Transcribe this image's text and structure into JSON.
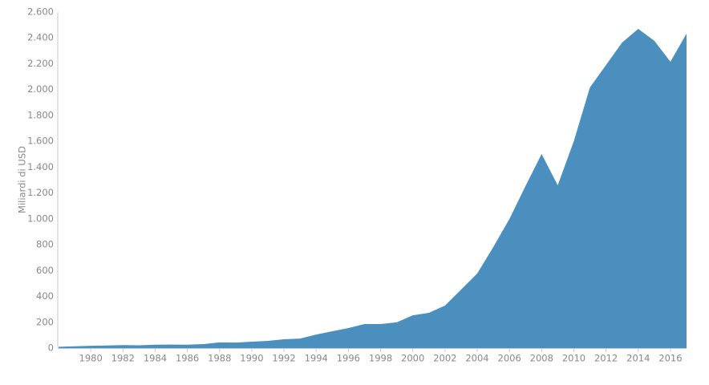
{
  "chart_data": {
    "type": "area",
    "y_label": "Miliardi di USD",
    "color": "#4a8fbd",
    "x": [
      1978,
      1979,
      1980,
      1981,
      1982,
      1983,
      1984,
      1985,
      1986,
      1987,
      1988,
      1989,
      1990,
      1991,
      1992,
      1993,
      1994,
      1995,
      1996,
      1997,
      1998,
      1999,
      2000,
      2001,
      2002,
      2003,
      2004,
      2005,
      2006,
      2007,
      2008,
      2009,
      2010,
      2011,
      2012,
      2013,
      2014,
      2015,
      2016,
      2017
    ],
    "values": [
      10,
      14,
      18,
      20,
      23,
      22,
      26,
      27,
      26,
      31,
      44,
      43,
      50,
      56,
      68,
      74,
      105,
      130,
      155,
      186,
      186,
      199,
      254,
      273,
      329,
      453,
      577,
      782,
      999,
      1254,
      1502,
      1260,
      1601,
      2017,
      2190,
      2364,
      2470,
      2377,
      2215,
      2433
    ],
    "xlim": [
      1978,
      2017
    ],
    "xticks": [
      1980,
      1982,
      1984,
      1986,
      1988,
      1990,
      1992,
      1994,
      1996,
      1998,
      2000,
      2002,
      2004,
      2006,
      2008,
      2010,
      2012,
      2014,
      2016
    ],
    "ylim": [
      0,
      2600
    ],
    "yticks": [
      0,
      200,
      400,
      600,
      800,
      {
        "value": 1000,
        "label": "1.000"
      },
      {
        "value": 1200,
        "label": "1.200"
      },
      {
        "value": 1400,
        "label": "1.400"
      },
      {
        "value": 1600,
        "label": "1.600"
      },
      {
        "value": 1800,
        "label": "1.800"
      },
      {
        "value": 2000,
        "label": "2.000"
      },
      {
        "value": 2200,
        "label": "2.200"
      },
      {
        "value": 2400,
        "label": "2.400"
      },
      {
        "value": 2600,
        "label": "2.600"
      }
    ]
  }
}
